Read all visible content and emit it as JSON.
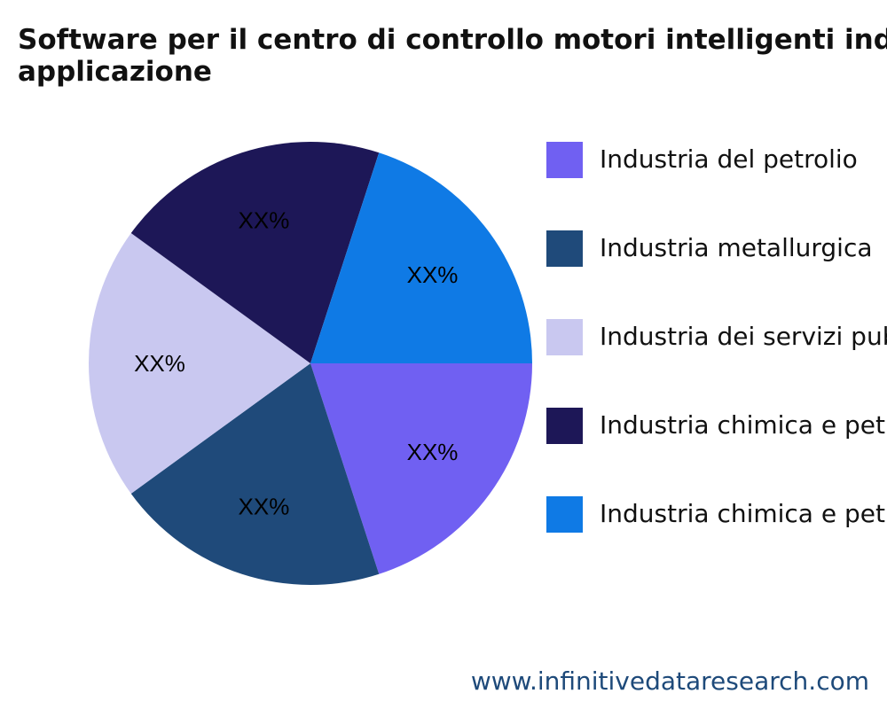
{
  "title": "Software per il centro di controllo motori intelligenti industriali per\napplicazione",
  "footer": {
    "website": "www.infinitivedataresearch.com"
  },
  "colors": {
    "footer_text": "#1e4a7a"
  },
  "chart_data": {
    "type": "pie",
    "title": "Software per il centro di controllo motori intelligenti industriali per\napplicazione",
    "legend_placement": "right",
    "slices": [
      {
        "name": "Industria del petrolio",
        "value": 20,
        "label": "XX%",
        "color": "#7060f2"
      },
      {
        "name": "Industria metallurgica",
        "value": 20,
        "label": "XX%",
        "color": "#1f4a7a"
      },
      {
        "name": "Industria dei servizi pubblici",
        "value": 20,
        "label": "XX%",
        "color": "#c9c8f0"
      },
      {
        "name": "Industria chimica e petrolchimica",
        "value": 20,
        "label": "XX%",
        "color": "#1d1757"
      },
      {
        "name": "Industria chimica e petrolchimica",
        "value": 20,
        "label": "XX%",
        "color": "#0f7ae5"
      }
    ]
  }
}
